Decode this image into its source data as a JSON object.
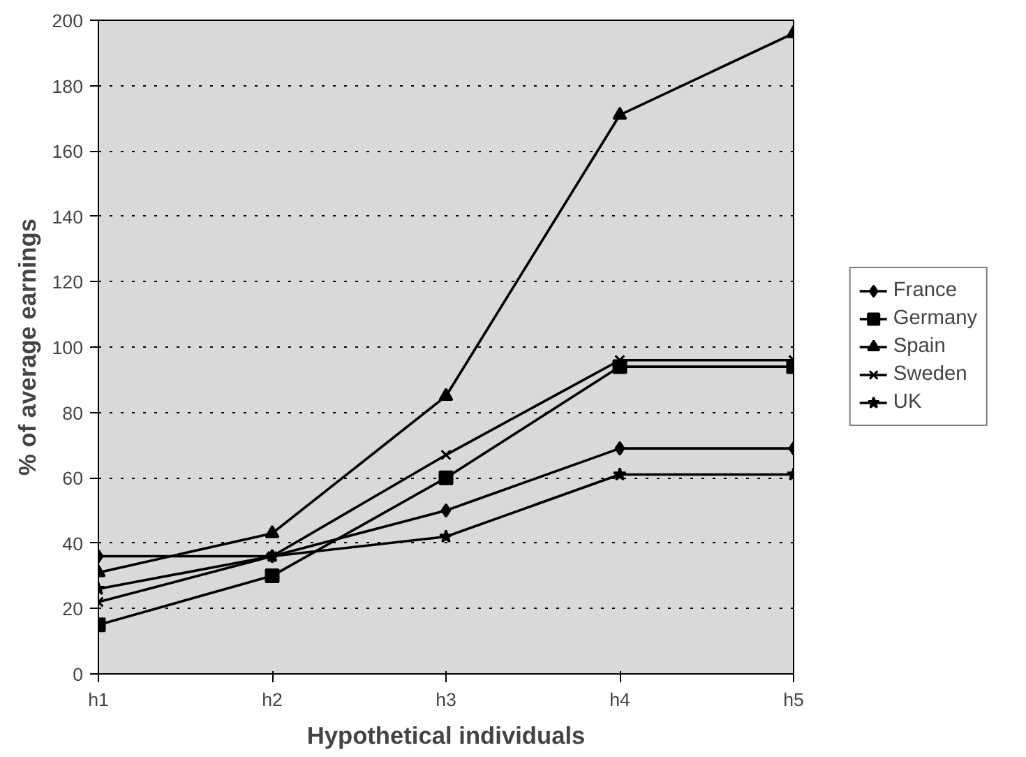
{
  "chart_data": {
    "type": "line",
    "xlabel": "Hypothetical individuals",
    "ylabel": "% of average earnings",
    "categories": [
      "h1",
      "h2",
      "h3",
      "h4",
      "h5"
    ],
    "series": [
      {
        "name": "France",
        "color": "#000000",
        "marker": "diamond",
        "values": [
          36,
          36,
          50,
          69,
          69
        ]
      },
      {
        "name": "Germany",
        "color": "#000000",
        "marker": "square",
        "values": [
          15,
          30,
          60,
          94,
          94
        ]
      },
      {
        "name": "Spain",
        "color": "#000000",
        "marker": "triangle",
        "values": [
          31,
          43,
          85,
          171,
          196
        ]
      },
      {
        "name": "Sweden",
        "color": "#000000",
        "marker": "cross",
        "values": [
          22,
          36,
          67,
          96,
          96
        ]
      },
      {
        "name": "UK",
        "color": "#000000",
        "marker": "star",
        "values": [
          26,
          36,
          42,
          61,
          61
        ]
      }
    ],
    "ylim": [
      0,
      200
    ],
    "yticks": [
      0,
      20,
      40,
      60,
      80,
      100,
      120,
      140,
      160,
      180,
      200
    ],
    "grid": "y",
    "legend": "right",
    "line_style": "solid"
  }
}
